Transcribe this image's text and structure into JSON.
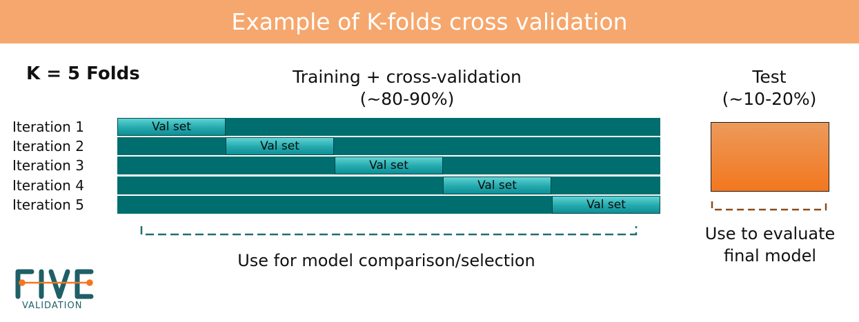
{
  "header": {
    "title": "Example of K-folds cross validation"
  },
  "k_label": "K = 5 Folds",
  "training": {
    "line1": "Training + cross-validation",
    "line2": "(~80-90%)"
  },
  "test": {
    "line1": "Test",
    "line2": "(~10-20%)"
  },
  "folds": 5,
  "iterations": [
    {
      "label": "Iteration 1",
      "val_label": "Val set",
      "val_fold": 1
    },
    {
      "label": "Iteration 2",
      "val_label": "Val set",
      "val_fold": 2
    },
    {
      "label": "Iteration 3",
      "val_label": "Val set",
      "val_fold": 3
    },
    {
      "label": "Iteration 4",
      "val_label": "Val set",
      "val_fold": 4
    },
    {
      "label": "Iteration 5",
      "val_label": "Val set",
      "val_fold": 5
    }
  ],
  "captions": {
    "model_selection": "Use for model comparison/selection",
    "evaluate_line1": "Use to evaluate",
    "evaluate_line2": "final model"
  },
  "logo": {
    "wordmark": "FIVE",
    "subtitle": "VALIDATION"
  },
  "colors": {
    "banner": "#f6a76d",
    "training_bar": "#006e6e",
    "val_set": "#24a9ad",
    "test_box": "#f3771f",
    "model_bracket": "#1f6e6e",
    "test_bracket": "#8a4a1a"
  }
}
